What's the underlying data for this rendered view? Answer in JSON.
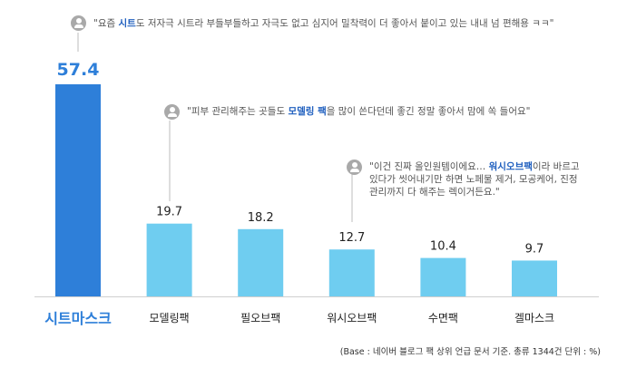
{
  "chart_data": {
    "type": "bar",
    "categories": [
      "시트마스크",
      "모델링팩",
      "필오브팩",
      "워시오브팩",
      "수면팩",
      "겔마스크"
    ],
    "values": [
      57.4,
      19.7,
      18.2,
      12.7,
      10.4,
      9.7
    ],
    "highlight_index": 0,
    "colors": {
      "highlight": "#2e7fd9",
      "bar": "#6fcdf0",
      "highlight_label": "#2e7fd9",
      "label": "#222222"
    },
    "ylim": [
      0,
      57.4
    ]
  },
  "comments": [
    {
      "pre": "\"요즘 ",
      "hl": "시트",
      "post": "도 저자극 시트라 부들부들하고 자극도 없고 심지어 밀착력이 더 좋아서 붙이고 있는 내내 넘 편해용 ㅋㅋ\""
    },
    {
      "pre": "\"피부 관리해주는 곳들도 ",
      "hl": "모델링 팩",
      "post": "을 많이 쓴다던데 좋긴 정말 좋아서 맘에 쏙 들어요\""
    },
    {
      "pre": "\"이건 진짜 올인원템이에요… ",
      "hl": "워시오브팩",
      "post": "이라 바르고 있다가 씻어내기만 하면 노페물 제거, 모공케어, 진정 관리까지 다 해주는 렉이거든요.\""
    }
  ],
  "footnote": "(Base : 네이버 블로그 팩 상위 언급 문서 기준. 총류 1344건 단위 : %)"
}
